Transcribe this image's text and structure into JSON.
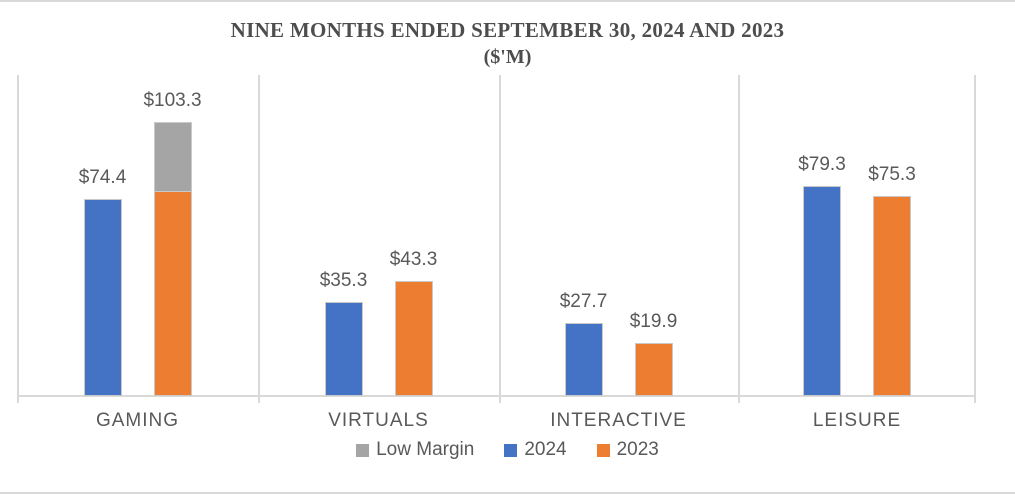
{
  "chart_data": {
    "type": "bar",
    "title": "NINE MONTHS ENDED SEPTEMBER 30, 2024 AND 2023",
    "subtitle": "($'M)",
    "categories": [
      "GAMING",
      "VIRTUALS",
      "INTERACTIVE",
      "LEISURE"
    ],
    "series": [
      {
        "name": "2024",
        "color": "#4472C4",
        "values": [
          74.4,
          35.3,
          27.7,
          79.3
        ],
        "data_labels": [
          "$74.4",
          "$35.3",
          "$27.7",
          "$79.3"
        ]
      },
      {
        "name": "2023",
        "color": "#ED7D31",
        "values": [
          76.9,
          43.3,
          19.9,
          75.3
        ],
        "data_labels": [
          "$103.3",
          "$43.3",
          "$19.9",
          "$75.3"
        ],
        "stack_totals": [
          103.3,
          43.3,
          19.9,
          75.3
        ]
      },
      {
        "name": "Low Margin",
        "color": "#A5A5A5",
        "stacked_on": "2023",
        "values": [
          26.4,
          0,
          0,
          0
        ],
        "data_labels": [
          "",
          "",
          "",
          ""
        ]
      }
    ],
    "ylim": [
      0,
      121
    ],
    "y_axis_visible": false,
    "gridlines": "vertical category separators",
    "legend_position": "bottom",
    "legend": [
      {
        "label": "Low Margin",
        "color": "#A5A5A5"
      },
      {
        "label": "2024",
        "color": "#4472C4"
      },
      {
        "label": "2023",
        "color": "#ED7D31"
      }
    ]
  },
  "colors": {
    "axis_line": "#D9D9D9",
    "bar_border": "#C9C9C9",
    "text": "#595959",
    "title_text": "#4D4D4D",
    "frame": "#D9D9D9",
    "background": "#FFFFFF"
  }
}
